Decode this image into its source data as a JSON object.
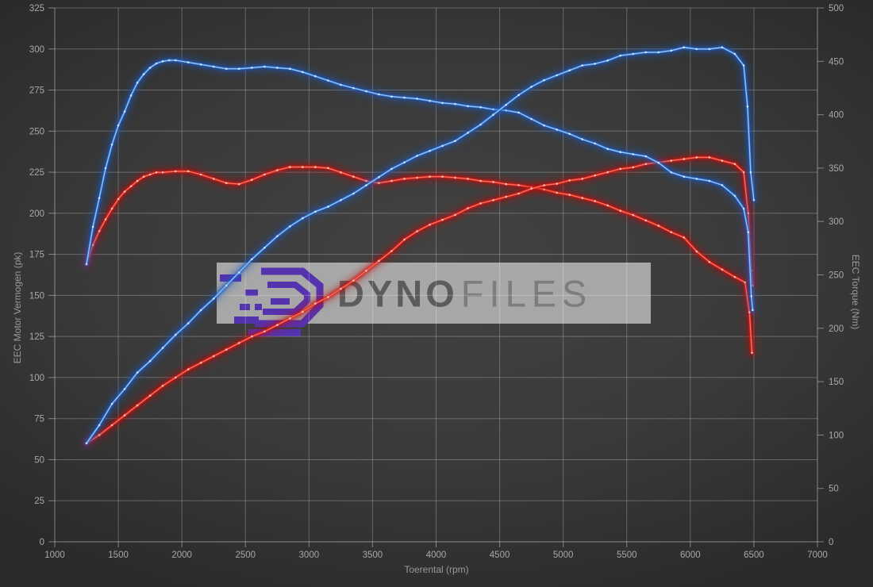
{
  "watermark": {
    "primary": "DYNO",
    "secondary": "FILES"
  },
  "axis_titles": {
    "left": "EEC Motor Vermogen (pk)",
    "right": "EEC Torque (Nm)",
    "bottom": "Toerental (rpm)"
  },
  "colors": {
    "background_center": "#414141",
    "background_edge": "#2a2a2a",
    "grid": "#ffffff",
    "tick_label": "#a8a8a8",
    "axis_title": "#9a9a9a",
    "watermark_band": "#b6b6b6",
    "watermark_primary": "#5c5c5c",
    "watermark_secondary": "#7d7d7d",
    "logo_purple": "#5532ae",
    "blue": {
      "glow": "#1a57c0",
      "line": "#3b7fd6",
      "core": "#a4cbf2",
      "dot": "#d9ebff"
    },
    "red": {
      "glow": "#c60d0d",
      "line": "#e02a1e",
      "core": "#ff7c69",
      "dot": "#ffd0c6"
    }
  },
  "chart_data": {
    "type": "line",
    "title": "",
    "xlabel": "Toerental (rpm)",
    "ylabel_left": "EEC Motor Vermogen (pk)",
    "ylabel_right": "EEC Torque (Nm)",
    "grid": true,
    "legend": "none",
    "x_range": [
      1000,
      7000
    ],
    "x_ticks": [
      1000,
      1500,
      2000,
      2500,
      3000,
      3500,
      4000,
      4500,
      5000,
      5500,
      6000,
      6500,
      7000
    ],
    "y_left_range": [
      0,
      325
    ],
    "y_left_ticks": [
      0,
      25,
      50,
      75,
      100,
      125,
      150,
      175,
      200,
      225,
      250,
      275,
      300,
      325
    ],
    "y_right_range": [
      0,
      500
    ],
    "y_right_ticks": [
      0,
      50,
      100,
      150,
      200,
      250,
      300,
      350,
      400,
      450,
      500
    ],
    "series": [
      {
        "name": "torque-red",
        "axis": "right",
        "color": "red",
        "unit": "Nm",
        "points": [
          [
            1250,
            260
          ],
          [
            1300,
            278
          ],
          [
            1350,
            291
          ],
          [
            1400,
            302
          ],
          [
            1450,
            312
          ],
          [
            1500,
            321
          ],
          [
            1550,
            328
          ],
          [
            1600,
            333
          ],
          [
            1650,
            338
          ],
          [
            1700,
            342
          ],
          [
            1750,
            344
          ],
          [
            1800,
            346
          ],
          [
            1850,
            346
          ],
          [
            1950,
            347
          ],
          [
            2050,
            347
          ],
          [
            2150,
            344
          ],
          [
            2250,
            340
          ],
          [
            2350,
            336
          ],
          [
            2450,
            335
          ],
          [
            2550,
            339
          ],
          [
            2650,
            344
          ],
          [
            2750,
            348
          ],
          [
            2850,
            351
          ],
          [
            2950,
            351
          ],
          [
            3050,
            351
          ],
          [
            3150,
            350
          ],
          [
            3250,
            346
          ],
          [
            3350,
            342
          ],
          [
            3450,
            338
          ],
          [
            3550,
            336
          ],
          [
            3650,
            338
          ],
          [
            3750,
            340
          ],
          [
            3850,
            341
          ],
          [
            3950,
            342
          ],
          [
            4050,
            342
          ],
          [
            4150,
            341
          ],
          [
            4250,
            340
          ],
          [
            4350,
            338
          ],
          [
            4450,
            337
          ],
          [
            4550,
            335
          ],
          [
            4650,
            334
          ],
          [
            4750,
            332
          ],
          [
            4850,
            330
          ],
          [
            4950,
            327
          ],
          [
            5050,
            325
          ],
          [
            5150,
            322
          ],
          [
            5250,
            319
          ],
          [
            5350,
            315
          ],
          [
            5450,
            310
          ],
          [
            5550,
            306
          ],
          [
            5650,
            301
          ],
          [
            5750,
            296
          ],
          [
            5850,
            290
          ],
          [
            5950,
            285
          ],
          [
            6050,
            272
          ],
          [
            6150,
            262
          ],
          [
            6250,
            255
          ],
          [
            6350,
            248
          ],
          [
            6430,
            243
          ],
          [
            6465,
            215
          ],
          [
            6485,
            177
          ]
        ]
      },
      {
        "name": "power-red",
        "axis": "left",
        "color": "red",
        "unit": "pk",
        "points": [
          [
            1250,
            60
          ],
          [
            1350,
            65
          ],
          [
            1450,
            71
          ],
          [
            1550,
            77
          ],
          [
            1650,
            83
          ],
          [
            1750,
            89
          ],
          [
            1850,
            95
          ],
          [
            1950,
            100
          ],
          [
            2050,
            105
          ],
          [
            2150,
            109
          ],
          [
            2250,
            113
          ],
          [
            2350,
            117
          ],
          [
            2450,
            121
          ],
          [
            2550,
            125
          ],
          [
            2650,
            128
          ],
          [
            2750,
            132
          ],
          [
            2850,
            136
          ],
          [
            2950,
            140
          ],
          [
            3050,
            145
          ],
          [
            3150,
            149
          ],
          [
            3250,
            154
          ],
          [
            3350,
            159
          ],
          [
            3450,
            165
          ],
          [
            3550,
            171
          ],
          [
            3650,
            177
          ],
          [
            3750,
            184
          ],
          [
            3850,
            189
          ],
          [
            3950,
            193
          ],
          [
            4050,
            196
          ],
          [
            4150,
            199
          ],
          [
            4250,
            203
          ],
          [
            4350,
            206
          ],
          [
            4450,
            208
          ],
          [
            4550,
            210
          ],
          [
            4650,
            212
          ],
          [
            4750,
            215
          ],
          [
            4850,
            217
          ],
          [
            4950,
            218
          ],
          [
            5050,
            220
          ],
          [
            5150,
            221
          ],
          [
            5250,
            223
          ],
          [
            5350,
            225
          ],
          [
            5450,
            227
          ],
          [
            5550,
            228
          ],
          [
            5650,
            230
          ],
          [
            5750,
            231
          ],
          [
            5850,
            232
          ],
          [
            5950,
            233
          ],
          [
            6050,
            234
          ],
          [
            6150,
            234
          ],
          [
            6250,
            232
          ],
          [
            6350,
            230
          ],
          [
            6420,
            225
          ],
          [
            6455,
            200
          ],
          [
            6480,
            165
          ],
          [
            6490,
            156
          ]
        ]
      },
      {
        "name": "torque-blue",
        "axis": "right",
        "color": "blue",
        "unit": "Nm",
        "points": [
          [
            1250,
            260
          ],
          [
            1300,
            295
          ],
          [
            1350,
            322
          ],
          [
            1400,
            350
          ],
          [
            1450,
            372
          ],
          [
            1500,
            390
          ],
          [
            1550,
            403
          ],
          [
            1600,
            418
          ],
          [
            1650,
            430
          ],
          [
            1700,
            438
          ],
          [
            1750,
            444
          ],
          [
            1800,
            448
          ],
          [
            1850,
            450
          ],
          [
            1900,
            451
          ],
          [
            1950,
            451
          ],
          [
            2050,
            449
          ],
          [
            2150,
            447
          ],
          [
            2250,
            445
          ],
          [
            2350,
            443
          ],
          [
            2450,
            443
          ],
          [
            2550,
            444
          ],
          [
            2650,
            445
          ],
          [
            2750,
            444
          ],
          [
            2850,
            443
          ],
          [
            2950,
            440
          ],
          [
            3050,
            436
          ],
          [
            3150,
            432
          ],
          [
            3250,
            428
          ],
          [
            3350,
            425
          ],
          [
            3450,
            422
          ],
          [
            3550,
            419
          ],
          [
            3650,
            417
          ],
          [
            3750,
            416
          ],
          [
            3850,
            415
          ],
          [
            3950,
            413
          ],
          [
            4050,
            411
          ],
          [
            4150,
            410
          ],
          [
            4250,
            408
          ],
          [
            4350,
            407
          ],
          [
            4450,
            405
          ],
          [
            4550,
            404
          ],
          [
            4650,
            402
          ],
          [
            4750,
            396
          ],
          [
            4850,
            390
          ],
          [
            4950,
            386
          ],
          [
            5050,
            382
          ],
          [
            5150,
            377
          ],
          [
            5250,
            373
          ],
          [
            5350,
            368
          ],
          [
            5450,
            365
          ],
          [
            5550,
            363
          ],
          [
            5650,
            361
          ],
          [
            5750,
            355
          ],
          [
            5850,
            346
          ],
          [
            5950,
            342
          ],
          [
            6050,
            340
          ],
          [
            6150,
            338
          ],
          [
            6250,
            334
          ],
          [
            6350,
            324
          ],
          [
            6420,
            312
          ],
          [
            6455,
            290
          ],
          [
            6480,
            230
          ],
          [
            6490,
            217
          ]
        ]
      },
      {
        "name": "power-blue",
        "axis": "left",
        "color": "blue",
        "unit": "pk",
        "points": [
          [
            1250,
            60
          ],
          [
            1350,
            71
          ],
          [
            1450,
            84
          ],
          [
            1550,
            93
          ],
          [
            1650,
            103
          ],
          [
            1750,
            110
          ],
          [
            1850,
            118
          ],
          [
            1950,
            126
          ],
          [
            2050,
            133
          ],
          [
            2150,
            141
          ],
          [
            2250,
            148
          ],
          [
            2350,
            156
          ],
          [
            2450,
            164
          ],
          [
            2550,
            172
          ],
          [
            2650,
            179
          ],
          [
            2750,
            186
          ],
          [
            2850,
            192
          ],
          [
            2950,
            197
          ],
          [
            3050,
            201
          ],
          [
            3150,
            204
          ],
          [
            3250,
            208
          ],
          [
            3350,
            212
          ],
          [
            3450,
            217
          ],
          [
            3550,
            222
          ],
          [
            3650,
            227
          ],
          [
            3750,
            231
          ],
          [
            3850,
            235
          ],
          [
            3950,
            238
          ],
          [
            4050,
            241
          ],
          [
            4150,
            244
          ],
          [
            4250,
            249
          ],
          [
            4350,
            254
          ],
          [
            4450,
            260
          ],
          [
            4550,
            266
          ],
          [
            4650,
            272
          ],
          [
            4750,
            277
          ],
          [
            4850,
            281
          ],
          [
            4950,
            284
          ],
          [
            5050,
            287
          ],
          [
            5150,
            290
          ],
          [
            5250,
            291
          ],
          [
            5350,
            293
          ],
          [
            5450,
            296
          ],
          [
            5550,
            297
          ],
          [
            5650,
            298
          ],
          [
            5750,
            298
          ],
          [
            5850,
            299
          ],
          [
            5950,
            301
          ],
          [
            6050,
            300
          ],
          [
            6150,
            300
          ],
          [
            6250,
            301
          ],
          [
            6350,
            297
          ],
          [
            6420,
            290
          ],
          [
            6450,
            265
          ],
          [
            6475,
            225
          ],
          [
            6500,
            208
          ]
        ]
      }
    ]
  }
}
